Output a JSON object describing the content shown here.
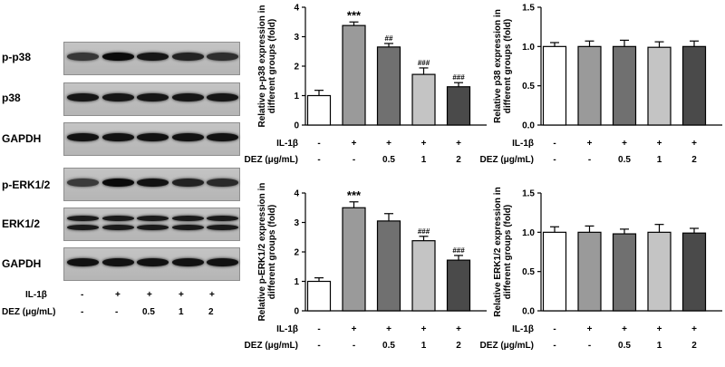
{
  "blot": {
    "rows": [
      "p-p38",
      "p38",
      "GAPDH",
      "p-ERK1/2",
      "ERK1/2",
      "GAPDH"
    ],
    "treatment_rows": [
      {
        "label": "IL-1β",
        "values": [
          "-",
          "+",
          "+",
          "+",
          "+"
        ]
      },
      {
        "label": "DEZ (μg/mL)",
        "values": [
          "-",
          "-",
          "0.5",
          "1",
          "2"
        ]
      }
    ]
  },
  "colors": {
    "bar_fills": [
      "#ffffff",
      "#9a9a9a",
      "#707070",
      "#c4c4c4",
      "#4a4a4a"
    ],
    "axis": "#000000"
  },
  "chart_data": [
    {
      "type": "bar",
      "ylabel": "Relative p-p38 expression in different groups (fold)",
      "ylim": [
        0,
        4
      ],
      "yticks": [
        "0",
        "1",
        "2",
        "3",
        "4"
      ],
      "values": [
        1.0,
        3.38,
        2.65,
        1.72,
        1.3
      ],
      "errors": [
        0.18,
        0.12,
        0.12,
        0.22,
        0.14
      ],
      "annotations": [
        "",
        "***",
        "##",
        "###",
        "###"
      ],
      "rows": [
        {
          "label": "IL-1β",
          "values": [
            "-",
            "+",
            "+",
            "+",
            "+"
          ]
        },
        {
          "label": "DEZ (μg/mL)",
          "values": [
            "-",
            "-",
            "0.5",
            "1",
            "2"
          ]
        }
      ]
    },
    {
      "type": "bar",
      "ylabel": "Relative p38 expression in different groups (fold)",
      "ylim": [
        0,
        1.5
      ],
      "yticks": [
        "0.0",
        "0.5",
        "1.0",
        "1.5"
      ],
      "values": [
        1.0,
        1.0,
        1.0,
        0.99,
        1.0
      ],
      "errors": [
        0.05,
        0.07,
        0.08,
        0.07,
        0.07
      ],
      "annotations": [
        "",
        "",
        "",
        "",
        ""
      ],
      "rows": [
        {
          "label": "IL-1β",
          "values": [
            "-",
            "+",
            "+",
            "+",
            "+"
          ]
        },
        {
          "label": "DEZ (μg/mL)",
          "values": [
            "-",
            "-",
            "0.5",
            "1",
            "2"
          ]
        }
      ]
    },
    {
      "type": "bar",
      "ylabel": "Relative p-ERK1/2 expression in different groups (fold)",
      "ylim": [
        0,
        4
      ],
      "yticks": [
        "0",
        "1",
        "2",
        "3",
        "4"
      ],
      "values": [
        1.0,
        3.5,
        3.05,
        2.38,
        1.72
      ],
      "errors": [
        0.12,
        0.2,
        0.25,
        0.15,
        0.16
      ],
      "annotations": [
        "",
        "***",
        "",
        "###",
        "###"
      ],
      "rows": [
        {
          "label": "IL-1β",
          "values": [
            "-",
            "+",
            "+",
            "+",
            "+"
          ]
        },
        {
          "label": "DEZ (μg/mL)",
          "values": [
            "-",
            "-",
            "0.5",
            "1",
            "2"
          ]
        }
      ]
    },
    {
      "type": "bar",
      "ylabel": "Relative ERK1/2 expression in different groups (fold)",
      "ylim": [
        0,
        1.5
      ],
      "yticks": [
        "0.0",
        "0.5",
        "1.0",
        "1.5"
      ],
      "values": [
        1.0,
        1.0,
        0.98,
        1.0,
        0.99
      ],
      "errors": [
        0.07,
        0.08,
        0.06,
        0.1,
        0.06
      ],
      "annotations": [
        "",
        "",
        "",
        "",
        ""
      ],
      "rows": [
        {
          "label": "IL-1β",
          "values": [
            "-",
            "+",
            "+",
            "+",
            "+"
          ]
        },
        {
          "label": "DEZ (μg/mL)",
          "values": [
            "-",
            "-",
            "0.5",
            "1",
            "2"
          ]
        }
      ]
    }
  ]
}
